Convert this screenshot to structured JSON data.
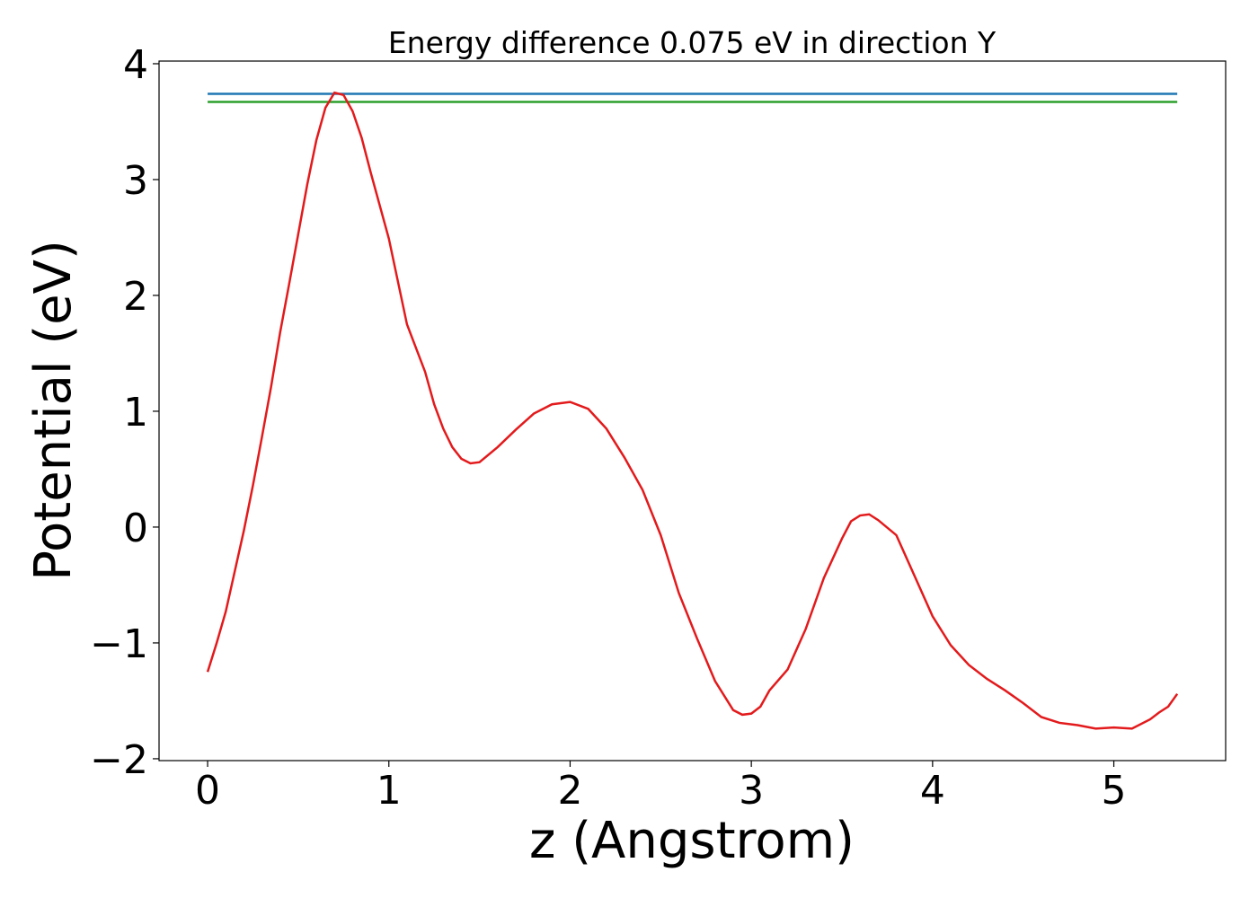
{
  "chart_data": {
    "type": "line",
    "title": "Energy difference 0.075 eV in direction Y",
    "x_label": "z (Angstrom)",
    "y_label": "Potential (eV)",
    "xlim": [
      -0.268,
      5.617
    ],
    "ylim": [
      -2.016,
      4.023
    ],
    "xticks": [
      0,
      1,
      2,
      3,
      4,
      5
    ],
    "yticks": [
      {
        "value": -2,
        "label": "−2"
      },
      {
        "value": -1,
        "label": "−1"
      },
      0,
      1,
      2,
      3,
      4
    ],
    "series": [
      {
        "color": "#1f77b4",
        "x": [
          0,
          5.35
        ],
        "values": [
          3.74,
          3.74
        ]
      },
      {
        "color": "#2ca02c",
        "x": [
          0,
          5.35
        ],
        "values": [
          3.67,
          3.67
        ]
      },
      {
        "color": "#e31a1c",
        "x": [
          0,
          0.05,
          0.1,
          0.15,
          0.2,
          0.25,
          0.3,
          0.35,
          0.4,
          0.45,
          0.5,
          0.55,
          0.6,
          0.65,
          0.7,
          0.75,
          0.8,
          0.85,
          0.9,
          1.0,
          1.1,
          1.2,
          1.25,
          1.3,
          1.35,
          1.4,
          1.45,
          1.5,
          1.6,
          1.7,
          1.8,
          1.9,
          2.0,
          2.1,
          2.2,
          2.3,
          2.4,
          2.5,
          2.6,
          2.7,
          2.8,
          2.9,
          2.95,
          3.0,
          3.05,
          3.1,
          3.2,
          3.3,
          3.4,
          3.5,
          3.55,
          3.6,
          3.65,
          3.7,
          3.8,
          3.9,
          4.0,
          4.1,
          4.2,
          4.3,
          4.4,
          4.5,
          4.6,
          4.7,
          4.8,
          4.9,
          5.0,
          5.1,
          5.2,
          5.25,
          5.3,
          5.35
        ],
        "values": [
          -1.25,
          -1.0,
          -0.73,
          -0.38,
          -0.03,
          0.36,
          0.78,
          1.21,
          1.68,
          2.1,
          2.53,
          2.96,
          3.34,
          3.62,
          3.75,
          3.73,
          3.59,
          3.36,
          3.06,
          2.49,
          1.75,
          1.34,
          1.06,
          0.85,
          0.69,
          0.59,
          0.55,
          0.56,
          0.69,
          0.84,
          0.98,
          1.06,
          1.08,
          1.02,
          0.85,
          0.6,
          0.32,
          -0.07,
          -0.57,
          -0.96,
          -1.33,
          -1.58,
          -1.62,
          -1.61,
          -1.55,
          -1.41,
          -1.23,
          -0.88,
          -0.44,
          -0.1,
          0.05,
          0.1,
          0.11,
          0.06,
          -0.07,
          -0.42,
          -0.77,
          -1.02,
          -1.19,
          -1.31,
          -1.41,
          -1.52,
          -1.64,
          -1.69,
          -1.71,
          -1.74,
          -1.73,
          -1.74,
          -1.66,
          -1.6,
          -1.55,
          -1.44
        ]
      }
    ]
  }
}
